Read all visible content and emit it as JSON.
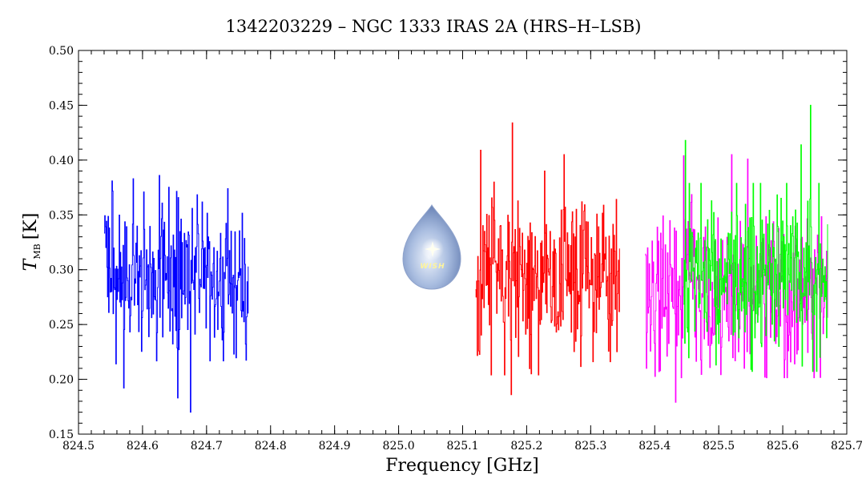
{
  "chart_data": {
    "type": "line",
    "title": "1342203229 – NGC 1333 IRAS 2A (HRS–H–LSB)",
    "xlabel": "Frequency [GHz]",
    "ylabel_main": "T",
    "ylabel_sub": "MB",
    "ylabel_unit": "[K]",
    "xlim": [
      824.5,
      825.7
    ],
    "ylim": [
      0.15,
      0.5
    ],
    "x_ticks": [
      824.5,
      824.6,
      824.7,
      824.8,
      824.9,
      825.0,
      825.1,
      825.2,
      825.3,
      825.4,
      825.5,
      825.6,
      825.7
    ],
    "x_tick_labels": [
      "824.5",
      "824.6",
      "824.7",
      "824.8",
      "824.9",
      "825.0",
      "825.1",
      "825.2",
      "825.3",
      "825.4",
      "825.5",
      "825.6",
      "825.7"
    ],
    "y_ticks": [
      0.15,
      0.2,
      0.25,
      0.3,
      0.35,
      0.4,
      0.45,
      0.5
    ],
    "y_tick_labels": [
      "0.15",
      "0.20",
      "0.25",
      "0.30",
      "0.35",
      "0.40",
      "0.45",
      "0.50"
    ],
    "x_minor_step": 0.02,
    "y_minor_step": 0.01,
    "grid": false,
    "series": [
      {
        "color": "#0000ff",
        "x_start": 824.54,
        "x_end": 824.765,
        "n": 260,
        "mean": 0.296,
        "noise": 0.036,
        "peaks": [
          [
            824.552,
            0.381
          ],
          [
            824.585,
            0.383
          ],
          [
            824.626,
            0.386
          ],
          [
            824.733,
            0.374
          ]
        ],
        "dips": [
          [
            824.558,
            0.214
          ],
          [
            824.57,
            0.192
          ],
          [
            824.655,
            0.183
          ],
          [
            824.675,
            0.17
          ],
          [
            824.742,
            0.223
          ]
        ]
      },
      {
        "color": "#ff0000",
        "x_start": 825.12,
        "x_end": 825.345,
        "n": 260,
        "mean": 0.292,
        "noise": 0.04,
        "peaks": [
          [
            825.128,
            0.409
          ],
          [
            825.177,
            0.434
          ],
          [
            825.228,
            0.39
          ],
          [
            825.258,
            0.405
          ]
        ],
        "dips": [
          [
            825.176,
            0.186
          ],
          [
            825.207,
            0.205
          ],
          [
            825.303,
            0.216
          ],
          [
            825.33,
            0.216
          ]
        ]
      },
      {
        "color": "#ff00ff",
        "x_start": 825.385,
        "x_end": 825.67,
        "n": 320,
        "mean": 0.285,
        "noise": 0.038,
        "peaks": [
          [
            825.445,
            0.404
          ],
          [
            825.52,
            0.405
          ],
          [
            825.545,
            0.401
          ]
        ],
        "dips": [
          [
            825.387,
            0.21
          ],
          [
            825.432,
            0.179
          ],
          [
            825.54,
            0.21
          ]
        ]
      },
      {
        "color": "#00ff00",
        "x_start": 825.445,
        "x_end": 825.67,
        "n": 260,
        "mean": 0.293,
        "noise": 0.039,
        "peaks": [
          [
            825.448,
            0.418
          ],
          [
            825.628,
            0.414
          ],
          [
            825.643,
            0.45
          ]
        ],
        "dips": [
          [
            825.495,
            0.213
          ],
          [
            825.55,
            0.209
          ],
          [
            825.63,
            0.212
          ],
          [
            825.658,
            0.22
          ]
        ]
      }
    ]
  },
  "logo": {
    "label": "WISH",
    "body_color": "#a9bde0",
    "star_color": "#fffff0"
  }
}
